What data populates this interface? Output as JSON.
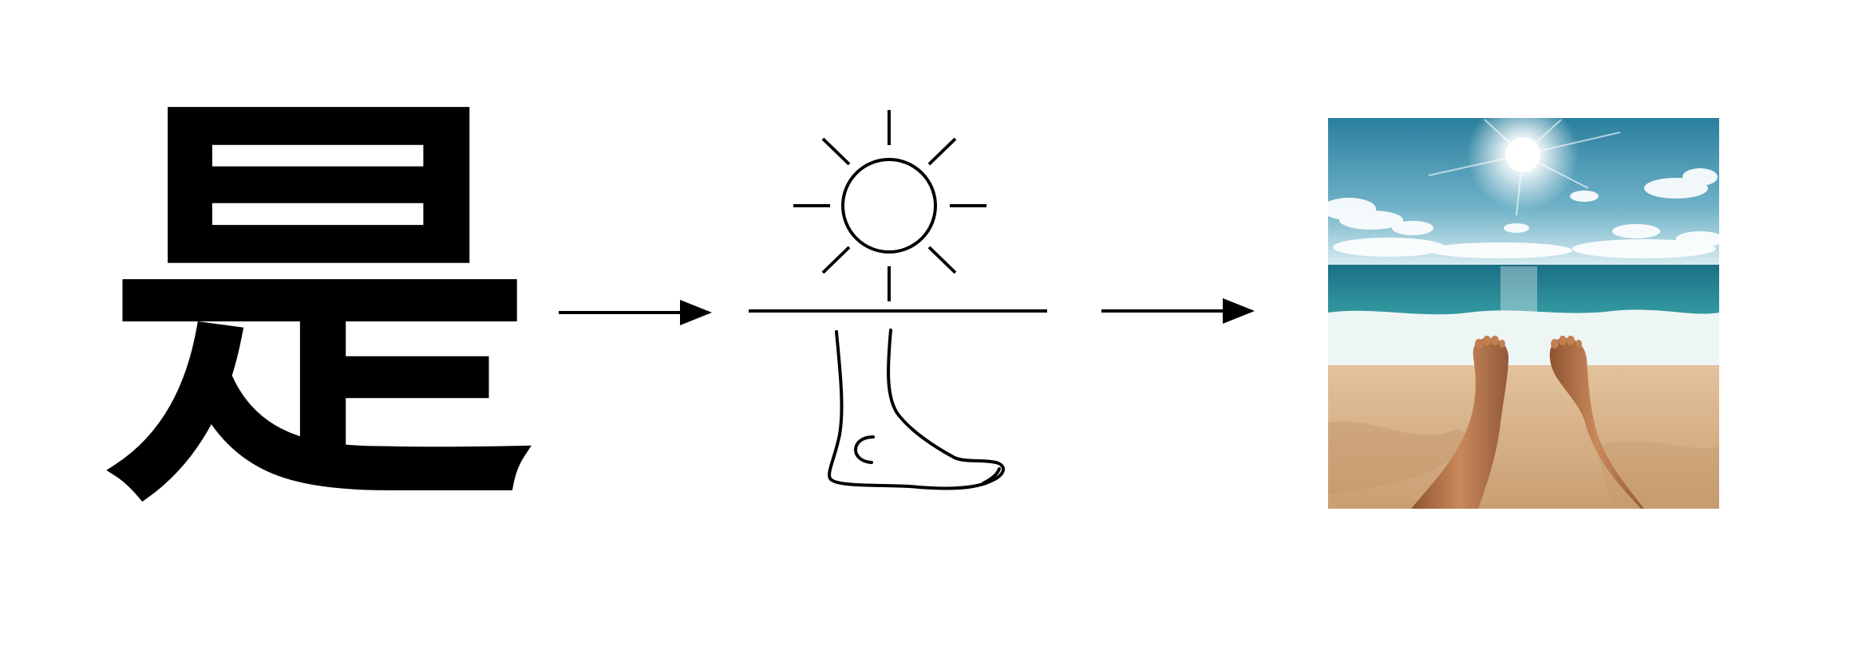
{
  "diagram": {
    "character": "是",
    "stages": [
      {
        "name": "character",
        "content": "是"
      },
      {
        "name": "pictograph",
        "parts": [
          "sun-icon",
          "horizon-line",
          "foot-icon"
        ]
      },
      {
        "name": "photo",
        "depicts": "beach-feet-under-sun-photo"
      }
    ],
    "colors": {
      "ink": "#000000",
      "background": "#ffffff",
      "sky_top": "#2f86a3",
      "sky_bottom": "#cfe6ee",
      "sea": "#1f8e98",
      "foam": "#e9f3f3",
      "sand": "#d9b58c",
      "skin": "#b8764a"
    }
  }
}
